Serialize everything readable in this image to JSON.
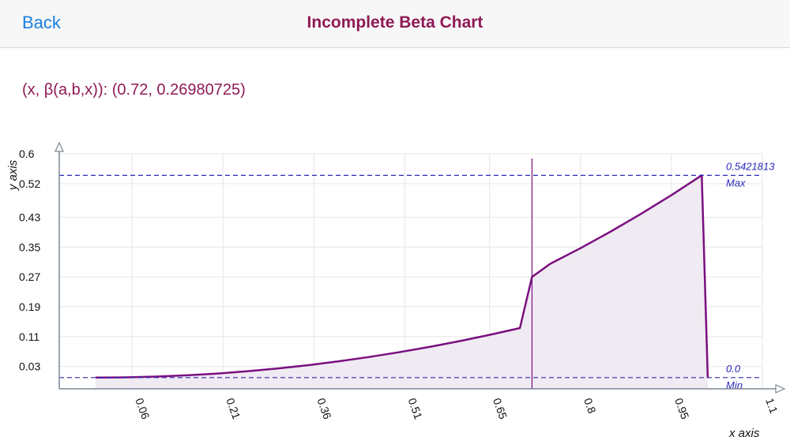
{
  "navbar": {
    "back_label": "Back",
    "title": "Incomplete Beta Chart"
  },
  "readout": {
    "text": "(x, β(a,b,x)): (0.72, 0.26980725)"
  },
  "chart_data": {
    "type": "area",
    "xlabel": "x axis",
    "ylabel": "y axis",
    "x_ticks": [
      "0.06",
      "0.21",
      "0.36",
      "0.51",
      "0.65",
      "0.8",
      "0.95",
      "1.1"
    ],
    "y_ticks": [
      "0.03",
      "0.11",
      "0.19",
      "0.27",
      "0.35",
      "0.43",
      "0.52",
      "0.6"
    ],
    "series": [
      {
        "values": [
          [
            0.0,
            0.0
          ],
          [
            0.05,
            0.0007
          ],
          [
            0.1,
            0.0027
          ],
          [
            0.15,
            0.0061
          ],
          [
            0.2,
            0.0108
          ],
          [
            0.25,
            0.0169
          ],
          [
            0.3,
            0.0244
          ],
          [
            0.35,
            0.0332
          ],
          [
            0.4,
            0.0434
          ],
          [
            0.45,
            0.0549
          ],
          [
            0.5,
            0.0678
          ],
          [
            0.55,
            0.082
          ],
          [
            0.6,
            0.0976
          ],
          [
            0.65,
            0.1146
          ],
          [
            0.7,
            0.1328
          ],
          [
            0.72,
            0.2698
          ],
          [
            0.75,
            0.305
          ],
          [
            0.8,
            0.347
          ],
          [
            0.85,
            0.3917
          ],
          [
            0.9,
            0.4392
          ],
          [
            0.95,
            0.4893
          ],
          [
            1.0,
            0.5422
          ],
          [
            1.01,
            0.0
          ]
        ]
      }
    ],
    "cursor": {
      "x": 0.72,
      "y": 0.26980725
    },
    "reference_lines": [
      {
        "value_label": "0.5421813",
        "name": "Max",
        "y": 0.5421813
      },
      {
        "value_label": "0.0",
        "name": "Min",
        "y": 0.0
      }
    ],
    "grid": true,
    "colors": {
      "line": "#7a0f7f",
      "fill": "#ede6f1",
      "reference": "#2a2ab8",
      "cursor": "#7a0f7f"
    }
  }
}
